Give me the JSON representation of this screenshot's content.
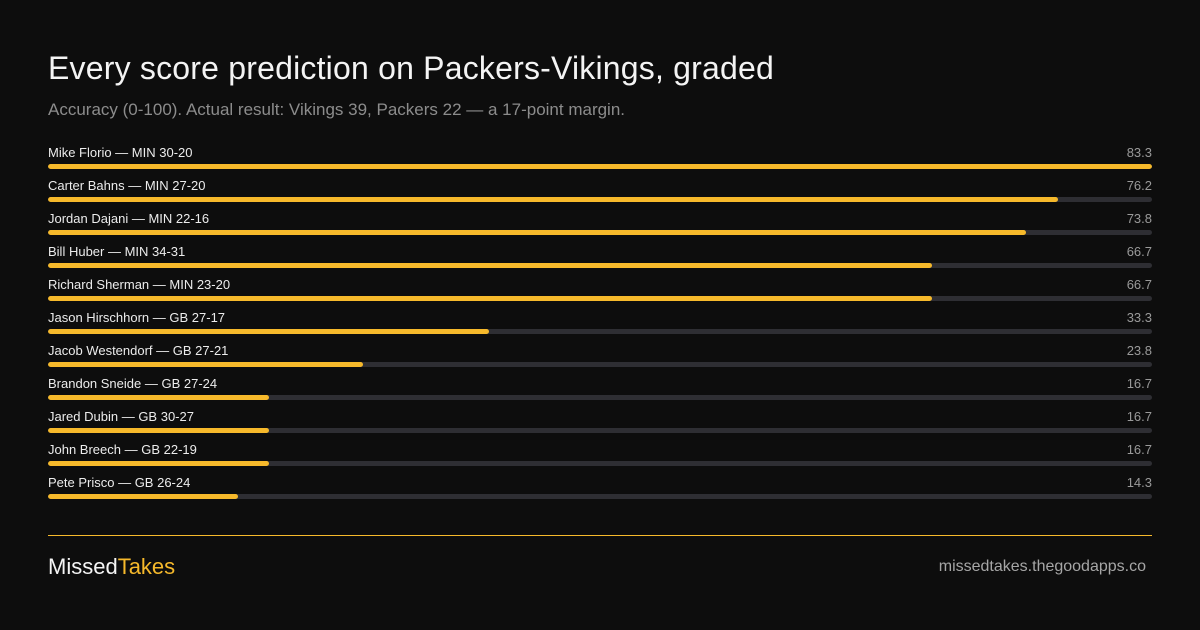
{
  "colors": {
    "background": "#0d0d0d",
    "accent": "#f6b92b",
    "track": "#2e2e33",
    "divider": "#f6b92b"
  },
  "footer": {
    "brand_part1": "Missed",
    "brand_part2": "Takes",
    "url": "missedtakes.thegoodapps.co"
  },
  "chart_data": {
    "type": "bar",
    "orientation": "horizontal",
    "title": "Every score prediction on Packers-Vikings, graded",
    "subtitle": "Accuracy (0-100). Actual result: Vikings 39, Packers 22 — a 17-point margin.",
    "xlim": [
      0,
      83.3
    ],
    "grid": false,
    "categories": [
      "Mike Florio — MIN 30-20",
      "Carter Bahns — MIN 27-20",
      "Jordan Dajani — MIN 22-16",
      "Bill Huber — MIN 34-31",
      "Richard Sherman — MIN 23-20",
      "Jason Hirschhorn  — GB 27-17",
      "Jacob Westendorf  — GB 27-21",
      "Brandon Sneide — GB 27-24",
      "Jared Dubin — GB 30-27",
      "John Breech — GB 22-19",
      "Pete Prisco — GB 26-24"
    ],
    "values": [
      83.3,
      76.2,
      73.8,
      66.7,
      66.7,
      33.3,
      23.8,
      16.7,
      16.7,
      16.7,
      14.3
    ],
    "value_labels": [
      "83.3",
      "76.2",
      "73.8",
      "66.7",
      "66.7",
      "33.3",
      "23.8",
      "16.7",
      "16.7",
      "16.7",
      "14.3"
    ]
  }
}
